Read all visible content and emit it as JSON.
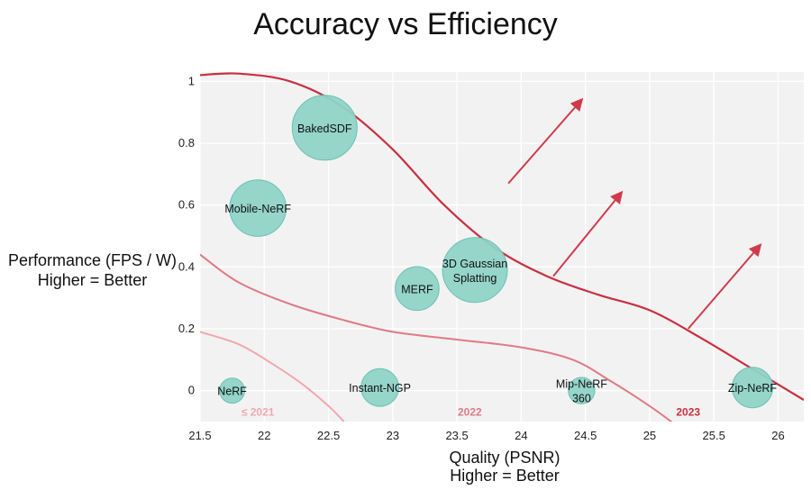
{
  "chart_data": {
    "type": "scatter",
    "title": "Accuracy vs Efficiency",
    "xlabel": [
      "Quality (PSNR)",
      "Higher = Better"
    ],
    "ylabel": [
      "Performance (FPS / W)",
      "Higher = Better"
    ],
    "xlim": [
      21.5,
      26.2
    ],
    "ylim": [
      -0.1,
      1.03
    ],
    "xticks": [
      "21.5",
      "22",
      "22.5",
      "23",
      "23.5",
      "24",
      "24.5",
      "25",
      "25.5",
      "26"
    ],
    "yticks": [
      "0",
      "0.2",
      "0.4",
      "0.6",
      "0.8",
      "1"
    ],
    "grid": true,
    "points": [
      {
        "label": "NeRF",
        "x": 21.75,
        "y": 0.0,
        "size": 0.15
      },
      {
        "label": "BakedSDF",
        "x": 22.47,
        "y": 0.85,
        "size": 1.0
      },
      {
        "label": "Mobile-NeRF",
        "x": 21.95,
        "y": 0.59,
        "size": 0.82
      },
      {
        "label": "MERF",
        "x": 23.19,
        "y": 0.33,
        "size": 0.55
      },
      {
        "label": "3D Gaussian Splatting",
        "x": 23.64,
        "y": 0.39,
        "size": 1.0
      },
      {
        "label": "Instant-NGP",
        "x": 22.9,
        "y": 0.01,
        "size": 0.42
      },
      {
        "label": "Mip-NeRF 360",
        "x": 24.47,
        "y": 0.0,
        "size": 0.18
      },
      {
        "label": "Zip-NeRF",
        "x": 25.8,
        "y": 0.01,
        "size": 0.48
      }
    ],
    "frontiers": [
      {
        "name": "≤ 2021",
        "color": "#f0a8ae",
        "label_x": 21.95,
        "label_y": -0.07,
        "curve": [
          [
            21.5,
            0.19
          ],
          [
            21.8,
            0.15
          ],
          [
            22.05,
            0.09
          ],
          [
            22.3,
            0.02
          ],
          [
            22.5,
            -0.05
          ],
          [
            22.62,
            -0.1
          ]
        ]
      },
      {
        "name": "2022",
        "color": "#e07a87",
        "label_x": 23.6,
        "label_y": -0.07,
        "curve": [
          [
            21.5,
            0.44
          ],
          [
            21.8,
            0.35
          ],
          [
            22.2,
            0.28
          ],
          [
            22.6,
            0.23
          ],
          [
            23.0,
            0.19
          ],
          [
            23.5,
            0.165
          ],
          [
            24.0,
            0.14
          ],
          [
            24.4,
            0.1
          ],
          [
            24.7,
            0.03
          ],
          [
            25.0,
            -0.05
          ],
          [
            25.2,
            -0.11
          ]
        ]
      },
      {
        "name": "2023",
        "color": "#c9303f",
        "label_x": 25.3,
        "label_y": -0.07,
        "curve": [
          [
            21.5,
            1.02
          ],
          [
            21.8,
            1.025
          ],
          [
            22.2,
            1.0
          ],
          [
            22.6,
            0.92
          ],
          [
            23.0,
            0.78
          ],
          [
            23.4,
            0.6
          ],
          [
            23.8,
            0.46
          ],
          [
            24.2,
            0.37
          ],
          [
            24.6,
            0.31
          ],
          [
            25.0,
            0.26
          ],
          [
            25.4,
            0.17
          ],
          [
            25.8,
            0.07
          ],
          [
            26.2,
            -0.03
          ]
        ]
      }
    ],
    "arrows": [
      {
        "from": [
          23.9,
          0.67
        ],
        "to": [
          24.47,
          0.94
        ]
      },
      {
        "from": [
          24.25,
          0.37
        ],
        "to": [
          24.78,
          0.64
        ]
      },
      {
        "from": [
          25.3,
          0.2
        ],
        "to": [
          25.86,
          0.47
        ]
      }
    ],
    "colors": {
      "bubble": "#8fd3c7",
      "bubble_stroke": "#6cc2b4",
      "arrow": "#d03b4b",
      "plot_bg": "#f2f2f2",
      "grid": "#ffffff",
      "axis_text": "#222222"
    }
  }
}
